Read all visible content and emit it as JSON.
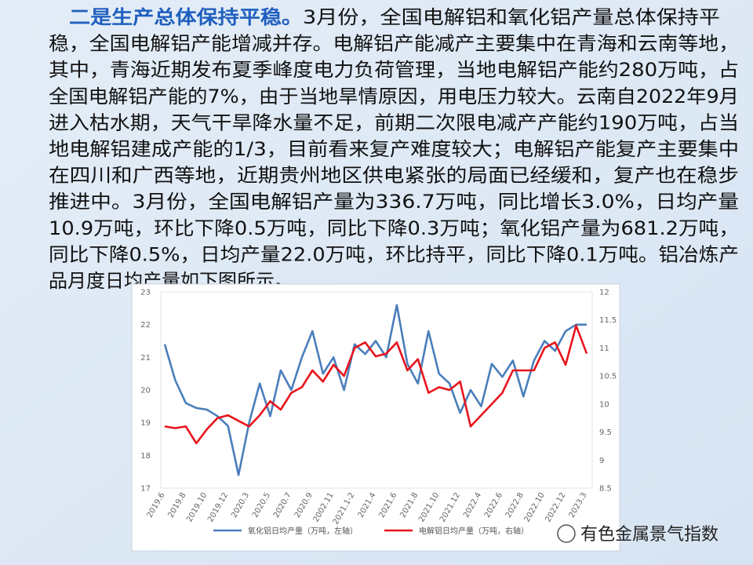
{
  "paragraph": {
    "lead": "二是生产总体保持平稳。",
    "lines": [
      "3月份，全国电解铝和氧化铝产量总体保持平",
      "稳，全国电解铝产能增减并存。电解铝产能减产主要集中在青海和云南等地，",
      "其中，青海近期发布夏季峰度电力负荷管理，当地电解铝产能约280万吨，占",
      "全国电解铝产能的7%，由于当地旱情原因，用电压力较大。云南自2022年9月",
      "进入枯水期，天气干旱降水量不足，前期二次限电减产产能约190万吨，占当",
      "地电解铝建成产能的1/3，目前看来复产难度较大；电解铝产能复产主要集中",
      "在四川和广西等地，近期贵州地区供电紧张的局面已经缓和，复产也在稳步",
      "推进中。3月份，全国电解铝产量为336.7万吨，同比增长3.0%，日均产量",
      "10.9万吨，环比下降0.5万吨，同比下降0.3万吨；氧化铝产量为681.2万吨，",
      "同比下降0.5%，日均产量22.0万吨，环比持平，同比下降0.1万吨。铝冶炼产",
      "品月度日均产量如下图所示。"
    ]
  },
  "watermark": "有色金属景气指数",
  "chart_data": {
    "type": "line",
    "categories": [
      "2019.6",
      null,
      "2019.8",
      null,
      "2019.10",
      null,
      "2019.12",
      null,
      "2020.3",
      null,
      "2020.5",
      null,
      "2020.7",
      null,
      "2020.9",
      null,
      "2002.11",
      null,
      "2021.1-2",
      null,
      "2021.4",
      null,
      "2021.6",
      null,
      "2021.8",
      null,
      "2021.10",
      null,
      "2021.12",
      null,
      "2022.4",
      null,
      "2022.6",
      null,
      "2022.8",
      null,
      "2022.10",
      null,
      "2022.12",
      null,
      "2023.3"
    ],
    "series": [
      {
        "name": "氧化铝日均产量（万吨，左轴）",
        "color": "#4a7ebb",
        "axis": "y",
        "values": [
          21.4,
          20.3,
          19.6,
          19.45,
          19.4,
          19.2,
          18.9,
          17.4,
          19.0,
          20.2,
          19.2,
          20.6,
          20.0,
          21.0,
          21.8,
          20.5,
          21.0,
          20.0,
          21.4,
          21.1,
          21.5,
          21.0,
          22.6,
          20.8,
          20.2,
          21.8,
          20.5,
          20.2,
          19.3,
          20.0,
          19.5,
          20.8,
          20.4,
          20.9,
          19.8,
          20.9,
          21.5,
          21.2,
          21.8,
          22.0,
          22.0
        ]
      },
      {
        "name": "电解铝日均产量（万吨，右轴）",
        "color": "#e8141c",
        "axis": "y2",
        "values": [
          9.6,
          9.57,
          9.6,
          9.3,
          9.55,
          9.75,
          9.8,
          9.7,
          9.6,
          9.8,
          10.05,
          9.9,
          10.2,
          10.3,
          10.6,
          10.4,
          10.7,
          10.5,
          11.0,
          11.1,
          10.85,
          10.9,
          11.1,
          10.6,
          10.8,
          10.2,
          10.3,
          10.25,
          10.4,
          9.6,
          9.8,
          10.0,
          10.2,
          10.6,
          10.6,
          10.6,
          11.0,
          11.1,
          10.7,
          11.4,
          10.9
        ]
      }
    ],
    "ylim": [
      17,
      23
    ],
    "yticks": [
      17,
      18,
      19,
      20,
      21,
      22,
      23
    ],
    "y2lim": [
      8.5,
      12
    ],
    "y2ticks": [
      8.5,
      9,
      9.5,
      10,
      10.5,
      11,
      11.5,
      12
    ],
    "grid": false,
    "legend": "bottom"
  }
}
